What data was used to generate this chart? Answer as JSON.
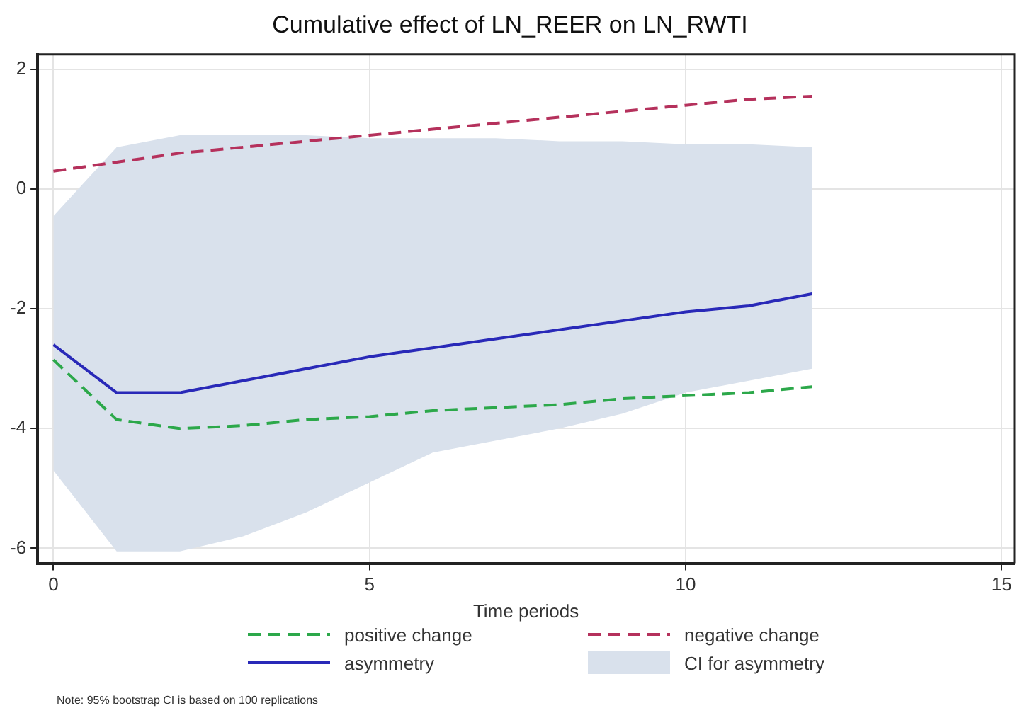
{
  "chart_data": {
    "type": "line",
    "title": "Cumulative effect of LN_REER on LN_RWTI",
    "xlabel": "Time periods",
    "x": [
      0,
      1,
      2,
      3,
      4,
      5,
      6,
      7,
      8,
      9,
      10,
      11,
      12
    ],
    "series": [
      {
        "name": "positive change",
        "color": "#2ca84a",
        "line_style": "dashed",
        "values": [
          -2.85,
          -3.85,
          -4.0,
          -3.95,
          -3.85,
          -3.8,
          -3.7,
          -3.65,
          -3.6,
          -3.5,
          -3.45,
          -3.4,
          -3.3
        ]
      },
      {
        "name": "negative change",
        "color": "#b5315c",
        "line_style": "dashed",
        "values": [
          0.3,
          0.45,
          0.6,
          0.7,
          0.8,
          0.9,
          1.0,
          1.1,
          1.2,
          1.3,
          1.4,
          1.5,
          1.55
        ]
      },
      {
        "name": "asymmetry",
        "color": "#2929b8",
        "line_style": "solid",
        "values": [
          -2.6,
          -3.4,
          -3.4,
          -3.2,
          -3.0,
          -2.8,
          -2.65,
          -2.5,
          -2.35,
          -2.2,
          -2.05,
          -1.95,
          -1.75
        ]
      },
      {
        "name": "CI for asymmetry",
        "type": "area",
        "color": "#d9e1ec",
        "values": [
          null,
          null,
          null,
          null,
          null,
          null,
          null,
          null,
          null,
          null,
          null,
          null,
          null
        ],
        "lower": [
          -4.7,
          -6.05,
          -6.05,
          -5.8,
          -5.4,
          -4.9,
          -4.4,
          -4.2,
          -4.0,
          -3.75,
          -3.4,
          -3.2,
          -3.0
        ],
        "upper": [
          -0.45,
          0.7,
          0.9,
          0.9,
          0.9,
          0.85,
          0.85,
          0.85,
          0.8,
          0.8,
          0.75,
          0.75,
          0.7
        ]
      }
    ],
    "xlim": [
      -0.25,
      15.2
    ],
    "xticks": [
      0,
      5,
      10,
      15
    ],
    "ylim": [
      -6.25,
      2.25
    ],
    "yticks": [
      -6,
      -4,
      -2,
      0,
      2
    ],
    "grid": true,
    "legend": "bottom",
    "marker": "none",
    "annotations": [
      "Note: 95% bootstrap CI is based on 100 replications"
    ]
  }
}
